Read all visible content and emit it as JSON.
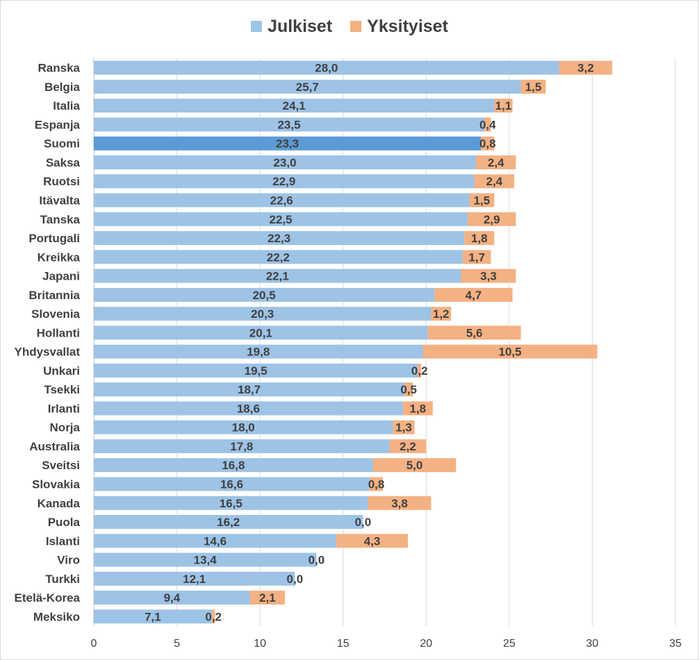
{
  "chart_data": {
    "type": "bar",
    "orientation": "horizontal",
    "stacked": true,
    "categories": [
      "Ranska",
      "Belgia",
      "Italia",
      "Espanja",
      "Suomi",
      "Saksa",
      "Ruotsi",
      "Itävalta",
      "Tanska",
      "Portugali",
      "Kreikka",
      "Japani",
      "Britannia",
      "Slovenia",
      "Hollanti",
      "Yhdysvallat",
      "Unkari",
      "Tsekki",
      "Irlanti",
      "Norja",
      "Australia",
      "Sveitsi",
      "Slovakia",
      "Kanada",
      "Puola",
      "Islanti",
      "Viro",
      "Turkki",
      "Etelä-Korea",
      "Meksiko"
    ],
    "series": [
      {
        "name": "Julkiset",
        "color": "#9dc3e6",
        "values": [
          28.0,
          25.7,
          24.1,
          23.5,
          23.3,
          23.0,
          22.9,
          22.6,
          22.5,
          22.3,
          22.2,
          22.1,
          20.5,
          20.3,
          20.1,
          19.8,
          19.5,
          18.7,
          18.6,
          18.0,
          17.8,
          16.8,
          16.6,
          16.5,
          16.2,
          14.6,
          13.4,
          12.1,
          9.4,
          7.1
        ],
        "labels": [
          "28,0",
          "25,7",
          "24,1",
          "23,5",
          "23,3",
          "23,0",
          "22,9",
          "22,6",
          "22,5",
          "22,3",
          "22,2",
          "22,1",
          "20,5",
          "20,3",
          "20,1",
          "19,8",
          "19,5",
          "18,7",
          "18,6",
          "18,0",
          "17,8",
          "16,8",
          "16,6",
          "16,5",
          "16,2",
          "14,6",
          "13,4",
          "12,1",
          "9,4",
          "7,1"
        ]
      },
      {
        "name": "Yksityiset",
        "color": "#f4b183",
        "values": [
          3.2,
          1.5,
          1.1,
          0.4,
          0.8,
          2.4,
          2.4,
          1.5,
          2.9,
          1.8,
          1.7,
          3.3,
          4.7,
          1.2,
          5.6,
          10.5,
          0.2,
          0.5,
          1.8,
          1.3,
          2.2,
          5.0,
          0.8,
          3.8,
          0.0,
          4.3,
          0.0,
          0.0,
          2.1,
          0.2
        ],
        "labels": [
          "3,2",
          "1,5",
          "1,1",
          "0,4",
          "0,8",
          "2,4",
          "2,4",
          "1,5",
          "2,9",
          "1,8",
          "1,7",
          "3,3",
          "4,7",
          "1,2",
          "5,6",
          "10,5",
          "0,2",
          "0,5",
          "1,8",
          "1,3",
          "2,2",
          "5,0",
          "0,8",
          "3,8",
          "0,0",
          "4,3",
          "0,0",
          "0,0",
          "2,1",
          "0,2"
        ]
      }
    ],
    "highlight": {
      "category": "Suomi",
      "color": "#5b9bd5"
    },
    "xlim": [
      0,
      35
    ],
    "xticks": [
      "0",
      "5",
      "10",
      "15",
      "20",
      "25",
      "30",
      "35"
    ],
    "grid": true,
    "legend_position": "top"
  }
}
